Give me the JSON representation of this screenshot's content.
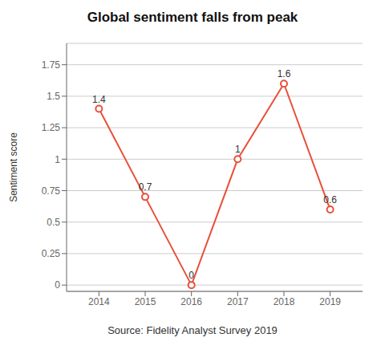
{
  "chart_data": {
    "type": "line",
    "title": "Global sentiment falls from peak",
    "ylabel": "Sentiment score",
    "annotations": [
      "Source: Fidelity Analyst Survey 2019"
    ],
    "x": [
      2014,
      2015,
      2016,
      2017,
      2018,
      2019
    ],
    "values": [
      1.4,
      0.7,
      0.0,
      1.0,
      1.6,
      0.6
    ],
    "color": "#E8503A",
    "marker": "circle",
    "data_labels": true,
    "xlim": [
      2013.3,
      2019.7
    ],
    "xticks": [
      2014,
      2015,
      2016,
      2017,
      2018,
      2019
    ],
    "ylim": [
      -0.05,
      1.92
    ],
    "yticks": [
      0,
      0.25,
      0.5,
      0.75,
      1,
      1.25,
      1.5,
      1.75
    ],
    "grid": true
  }
}
